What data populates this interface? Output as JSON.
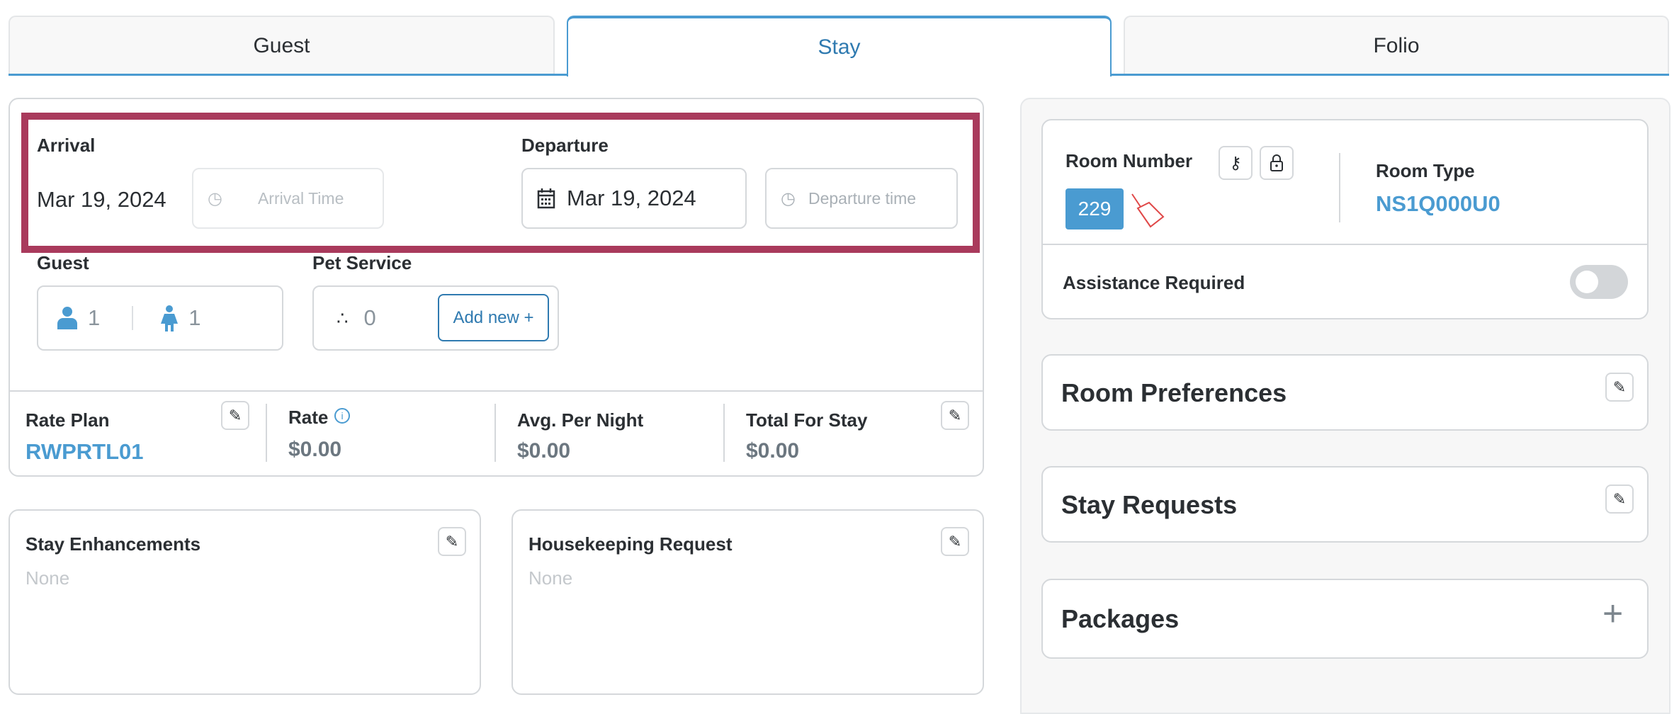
{
  "tabs": [
    {
      "label": "Guest"
    },
    {
      "label": "Stay"
    },
    {
      "label": "Folio"
    }
  ],
  "stay": {
    "arrival": {
      "label": "Arrival",
      "date": "Mar 19, 2024",
      "time_placeholder": "Arrival Time"
    },
    "departure": {
      "label": "Departure",
      "date": "Mar 19, 2024",
      "time_placeholder": "Departure time"
    },
    "guest": {
      "label": "Guest",
      "adults": "1",
      "children": "1"
    },
    "pet": {
      "label": "Pet Service",
      "count": "0",
      "add_label": "Add new +"
    },
    "rate": {
      "rate_plan_label": "Rate Plan",
      "rate_plan_value": "RWPRTL01",
      "rate_label": "Rate",
      "rate_value": "$0.00",
      "avg_label": "Avg. Per Night",
      "avg_value": "$0.00",
      "total_label": "Total For Stay",
      "total_value": "$0.00"
    },
    "enhancements": {
      "title": "Stay Enhancements",
      "value": "None"
    },
    "housekeeping": {
      "title": "Housekeeping Request",
      "value": "None"
    }
  },
  "room": {
    "number_label": "Room Number",
    "number": "229",
    "type_label": "Room Type",
    "type": "NS1Q000U0",
    "assistance_label": "Assistance Required",
    "assistance_on": false
  },
  "sections": [
    {
      "title": "Room Preferences"
    },
    {
      "title": "Stay Requests"
    },
    {
      "title": "Packages"
    }
  ],
  "colors": {
    "accent": "#4a9bd1",
    "highlight": "#a93a5c",
    "room_badge": "#4a9bd1",
    "dirty_icon": "#e04848"
  }
}
